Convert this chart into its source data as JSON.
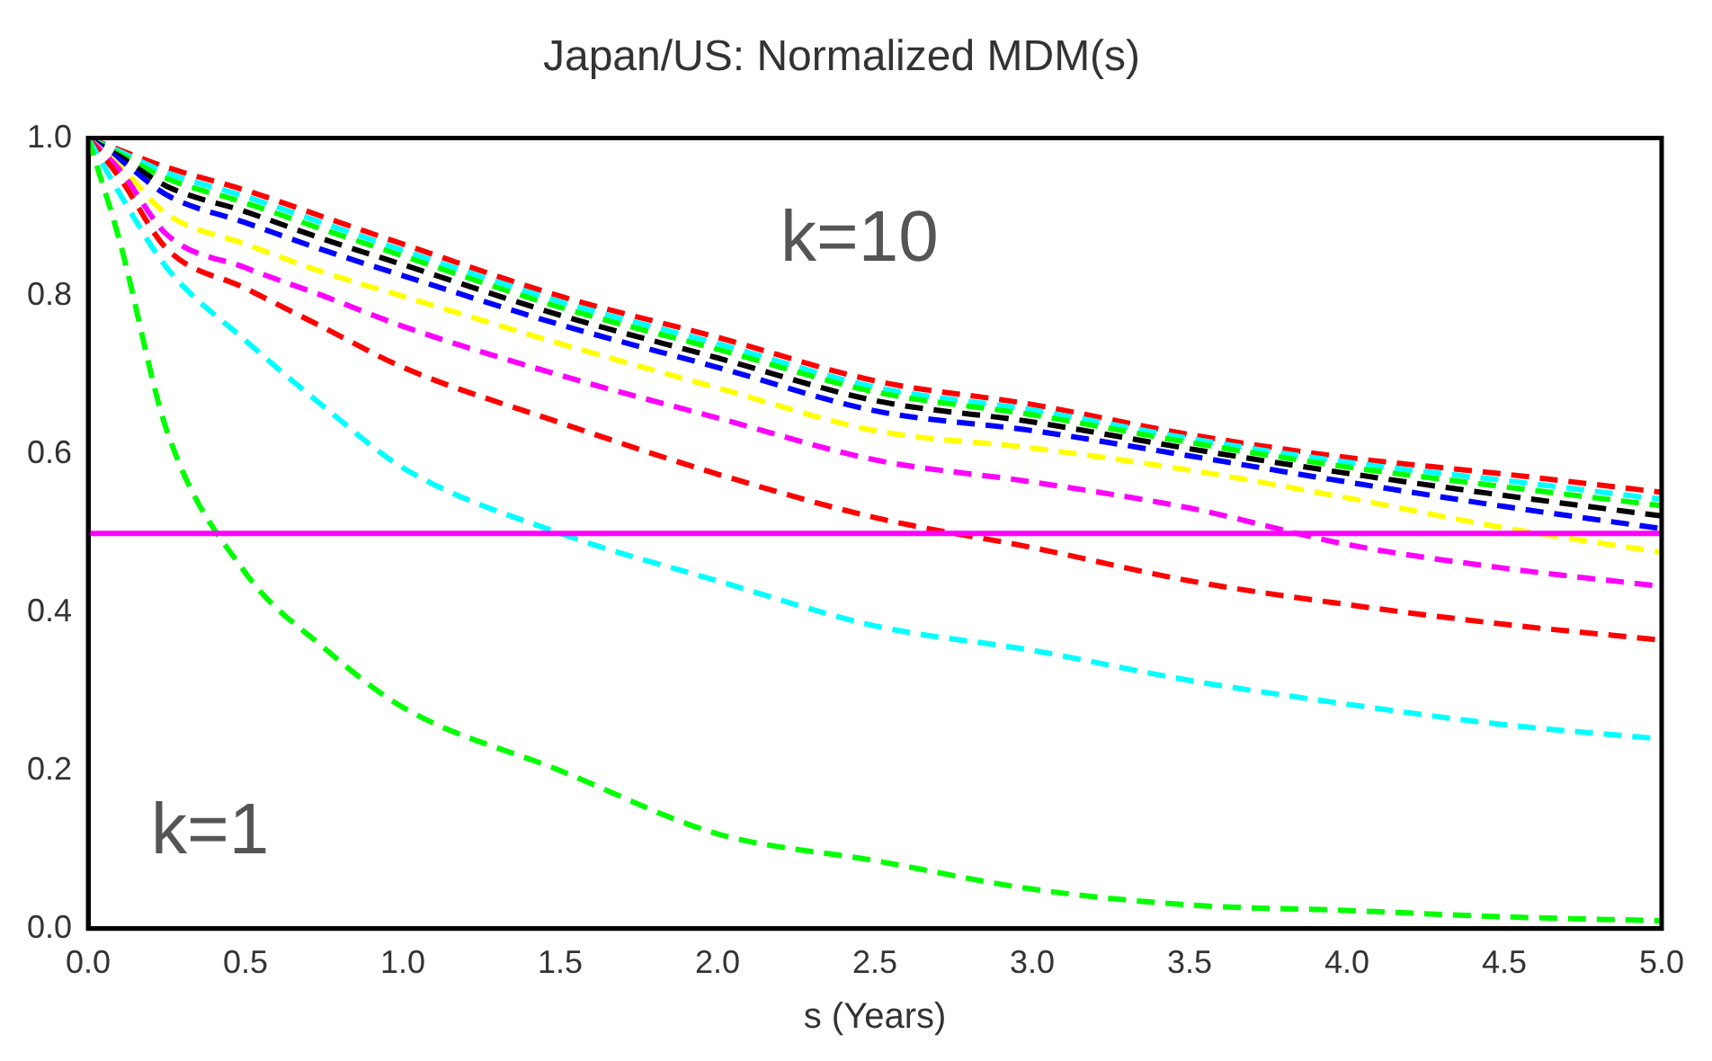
{
  "chart_data": {
    "type": "line",
    "title": "Japan/US: Normalized MDM(s)",
    "xlabel": "s (Years)",
    "x": [
      0,
      0.1,
      0.25,
      0.5,
      0.75,
      1,
      1.5,
      2,
      2.5,
      3,
      3.5,
      4,
      4.5,
      5
    ],
    "series": [
      {
        "color": "#00ff00",
        "values": [
          1,
          0.87,
          0.63,
          0.45,
          0.355,
          0.28,
          0.2,
          0.12,
          0.086,
          0.05,
          0.03,
          0.023,
          0.015,
          0.01
        ]
      },
      {
        "color": "#00ffff",
        "values": [
          1,
          0.93,
          0.836,
          0.744,
          0.66,
          0.583,
          0.5,
          0.44,
          0.383,
          0.352,
          0.314,
          0.284,
          0.258,
          0.24
        ]
      },
      {
        "color": "#ff0000",
        "values": [
          1,
          0.95,
          0.86,
          0.81,
          0.76,
          0.71,
          0.64,
          0.575,
          0.52,
          0.482,
          0.44,
          0.41,
          0.385,
          0.365
        ]
      },
      {
        "color": "#ff00ff",
        "values": [
          1,
          0.96,
          0.878,
          0.836,
          0.8,
          0.762,
          0.7,
          0.646,
          0.593,
          0.565,
          0.532,
          0.486,
          0.456,
          0.433
        ]
      },
      {
        "color": "#ffff00",
        "values": [
          1,
          0.965,
          0.904,
          0.866,
          0.83,
          0.8,
          0.74,
          0.684,
          0.63,
          0.608,
          0.58,
          0.545,
          0.507,
          0.476
        ]
      },
      {
        "color": "#0000ff",
        "values": [
          1,
          0.973,
          0.928,
          0.893,
          0.858,
          0.826,
          0.764,
          0.71,
          0.655,
          0.63,
          0.598,
          0.565,
          0.534,
          0.506
        ]
      },
      {
        "color": "#000000",
        "values": [
          1,
          0.977,
          0.939,
          0.907,
          0.872,
          0.84,
          0.776,
          0.722,
          0.668,
          0.641,
          0.607,
          0.576,
          0.548,
          0.522
        ]
      },
      {
        "color": "#00ff00",
        "values": [
          1,
          0.98,
          0.949,
          0.918,
          0.884,
          0.851,
          0.786,
          0.733,
          0.679,
          0.65,
          0.615,
          0.584,
          0.559,
          0.535
        ]
      },
      {
        "color": "#00ffff",
        "values": [
          1,
          0.983,
          0.956,
          0.926,
          0.892,
          0.858,
          0.793,
          0.74,
          0.685,
          0.656,
          0.62,
          0.59,
          0.567,
          0.543
        ]
      },
      {
        "color": "#ff0000",
        "values": [
          1,
          0.985,
          0.963,
          0.934,
          0.9,
          0.866,
          0.8,
          0.748,
          0.693,
          0.663,
          0.625,
          0.596,
          0.575,
          0.552
        ]
      }
    ],
    "ref_lines": [
      {
        "axis": "y",
        "value": 0.5,
        "color": "#ff00ff",
        "line_style": "solid"
      }
    ],
    "annotations": [
      "k=10",
      "k=1"
    ],
    "xlim": [
      0,
      5
    ],
    "xticks": [
      {
        "value": 0,
        "label": "0.0"
      },
      {
        "value": 0.5,
        "label": "0.5"
      },
      {
        "value": 1,
        "label": "1.0"
      },
      {
        "value": 1.5,
        "label": "1.5"
      },
      {
        "value": 2,
        "label": "2.0"
      },
      {
        "value": 2.5,
        "label": "2.5"
      },
      {
        "value": 3,
        "label": "3.0"
      },
      {
        "value": 3.5,
        "label": "3.5"
      },
      {
        "value": 4,
        "label": "4.0"
      },
      {
        "value": 4.5,
        "label": "4.5"
      },
      {
        "value": 5,
        "label": "5.0"
      }
    ],
    "ylim": [
      0,
      1
    ],
    "yticks": [
      {
        "value": 0,
        "label": "0.0"
      },
      {
        "value": 0.2,
        "label": "0.2"
      },
      {
        "value": 0.4,
        "label": "0.4"
      },
      {
        "value": 0.6,
        "label": "0.6"
      },
      {
        "value": 0.8,
        "label": "0.8"
      },
      {
        "value": 1,
        "label": "1.0"
      }
    ],
    "grid": false,
    "legend": false,
    "marker": "none",
    "line_style": "dashed"
  }
}
